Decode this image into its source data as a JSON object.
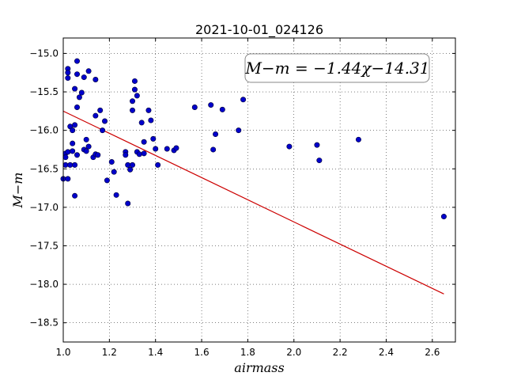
{
  "chart_data": {
    "type": "scatter",
    "title": "2021-10-01_024126",
    "xlabel": "airmass",
    "ylabel": "M−m",
    "xlim": [
      1.0,
      2.7
    ],
    "ylim": [
      -18.75,
      -14.8
    ],
    "xticks": [
      1.0,
      1.2,
      1.4,
      1.6,
      1.8,
      2.0,
      2.2,
      2.4,
      2.6
    ],
    "xtick_labels": [
      "1.0",
      "1.2",
      "1.4",
      "1.6",
      "1.8",
      "2.0",
      "2.2",
      "2.4",
      "2.6"
    ],
    "yticks": [
      -15.0,
      -15.5,
      -16.0,
      -16.5,
      -17.0,
      -17.5,
      -18.0,
      -18.5
    ],
    "ytick_labels": [
      "−15.0",
      "−15.5",
      "−16.0",
      "−16.5",
      "−17.0",
      "−17.5",
      "−18.0",
      "−18.5"
    ],
    "grid": true,
    "annotation": "M−m = −1.44χ−14.31",
    "colors": {
      "points": "#0000cc",
      "fit_line": "#cc0000"
    },
    "fit_line": {
      "slope": -1.44,
      "intercept": -14.31,
      "x_range": [
        1.0,
        2.65
      ]
    },
    "points": [
      [
        1.0,
        -16.63
      ],
      [
        1.01,
        -16.45
      ],
      [
        1.01,
        -16.3
      ],
      [
        1.01,
        -16.35
      ],
      [
        1.02,
        -16.28
      ],
      [
        1.02,
        -16.63
      ],
      [
        1.02,
        -15.2
      ],
      [
        1.02,
        -15.25
      ],
      [
        1.02,
        -15.32
      ],
      [
        1.03,
        -16.45
      ],
      [
        1.03,
        -15.95
      ],
      [
        1.04,
        -16.0
      ],
      [
        1.04,
        -16.17
      ],
      [
        1.04,
        -16.27
      ],
      [
        1.05,
        -15.93
      ],
      [
        1.05,
        -15.46
      ],
      [
        1.05,
        -16.45
      ],
      [
        1.05,
        -16.85
      ],
      [
        1.06,
        -15.7
      ],
      [
        1.06,
        -15.1
      ],
      [
        1.06,
        -15.27
      ],
      [
        1.06,
        -16.32
      ],
      [
        1.07,
        -15.57
      ],
      [
        1.08,
        -15.51
      ],
      [
        1.09,
        -16.25
      ],
      [
        1.09,
        -15.31
      ],
      [
        1.1,
        -16.27
      ],
      [
        1.1,
        -16.12
      ],
      [
        1.11,
        -16.21
      ],
      [
        1.11,
        -15.23
      ],
      [
        1.13,
        -16.35
      ],
      [
        1.14,
        -15.34
      ],
      [
        1.14,
        -15.81
      ],
      [
        1.14,
        -16.31
      ],
      [
        1.15,
        -16.32
      ],
      [
        1.16,
        -15.74
      ],
      [
        1.17,
        -16.0
      ],
      [
        1.18,
        -15.88
      ],
      [
        1.19,
        -16.65
      ],
      [
        1.21,
        -16.41
      ],
      [
        1.22,
        -16.54
      ],
      [
        1.23,
        -16.84
      ],
      [
        1.27,
        -16.28
      ],
      [
        1.27,
        -16.32
      ],
      [
        1.28,
        -16.45
      ],
      [
        1.28,
        -16.95
      ],
      [
        1.29,
        -16.51
      ],
      [
        1.3,
        -16.45
      ],
      [
        1.3,
        -15.74
      ],
      [
        1.3,
        -15.62
      ],
      [
        1.31,
        -15.47
      ],
      [
        1.31,
        -15.36
      ],
      [
        1.32,
        -15.55
      ],
      [
        1.32,
        -16.28
      ],
      [
        1.33,
        -16.31
      ],
      [
        1.34,
        -15.9
      ],
      [
        1.35,
        -16.15
      ],
      [
        1.35,
        -16.3
      ],
      [
        1.37,
        -15.74
      ],
      [
        1.38,
        -15.87
      ],
      [
        1.39,
        -16.11
      ],
      [
        1.4,
        -16.24
      ],
      [
        1.41,
        -16.45
      ],
      [
        1.45,
        -16.24
      ],
      [
        1.48,
        -16.26
      ],
      [
        1.49,
        -16.23
      ],
      [
        1.57,
        -15.7
      ],
      [
        1.64,
        -15.67
      ],
      [
        1.65,
        -16.25
      ],
      [
        1.66,
        -16.05
      ],
      [
        1.69,
        -15.73
      ],
      [
        1.76,
        -16.0
      ],
      [
        1.78,
        -15.6
      ],
      [
        1.98,
        -16.21
      ],
      [
        2.1,
        -16.19
      ],
      [
        2.11,
        -16.39
      ],
      [
        2.28,
        -16.12
      ],
      [
        2.65,
        -17.12
      ]
    ]
  }
}
